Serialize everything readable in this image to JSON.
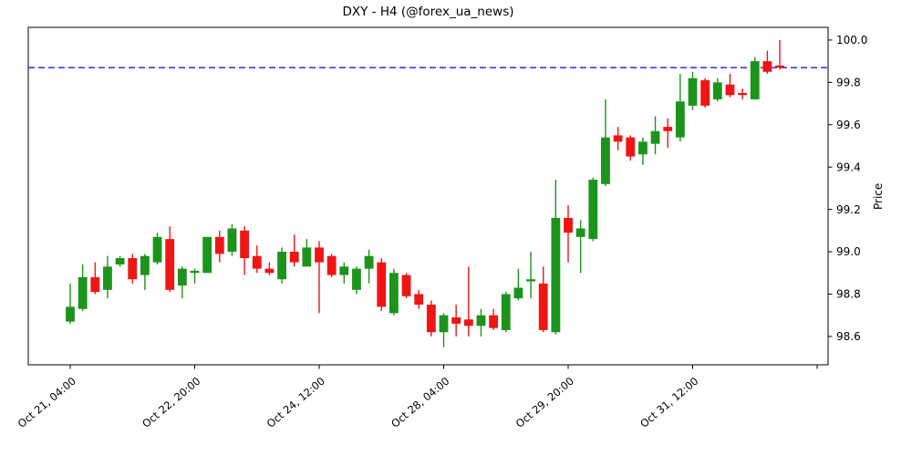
{
  "chart_data": {
    "type": "candlestick",
    "title": "DXY - H4 (@forex_ua_news)",
    "ylabel": "Price",
    "legend": "none",
    "grid": false,
    "ylim": [
      98.466,
      100.06
    ],
    "xlim": [
      -3.37,
      60.88
    ],
    "y_ticks": [
      "98.6",
      "98.8",
      "99.0",
      "99.2",
      "99.4",
      "99.6",
      "99.8",
      "100.0"
    ],
    "x_ticks": [
      {
        "index": 0,
        "label": "Oct 21, 04:00"
      },
      {
        "index": 10,
        "label": "Oct 22, 20:00"
      },
      {
        "index": 20,
        "label": "Oct 24, 12:00"
      },
      {
        "index": 30,
        "label": "Oct 28, 04:00"
      },
      {
        "index": 40,
        "label": "Oct 29, 20:00"
      },
      {
        "index": 50,
        "label": "Oct 31, 12:00"
      },
      {
        "index": 60,
        "label": ""
      }
    ],
    "hline": {
      "value": 99.87,
      "color": "#0000ee",
      "style": "dashed"
    },
    "colors": {
      "up": "#1c941c",
      "down": "#f01515",
      "axis": "#000000",
      "text": "#000000"
    },
    "ohlc": [
      [
        98.67,
        98.85,
        98.66,
        98.74
      ],
      [
        98.73,
        98.94,
        98.72,
        98.88
      ],
      [
        98.88,
        98.95,
        98.8,
        98.81
      ],
      [
        98.82,
        98.98,
        98.78,
        98.93
      ],
      [
        98.94,
        98.98,
        98.93,
        98.97
      ],
      [
        98.97,
        98.99,
        98.85,
        98.87
      ],
      [
        98.89,
        98.99,
        98.82,
        98.98
      ],
      [
        98.95,
        99.09,
        98.94,
        99.07
      ],
      [
        99.06,
        99.12,
        98.81,
        98.82
      ],
      [
        98.84,
        98.93,
        98.78,
        98.92
      ],
      [
        98.9,
        98.92,
        98.85,
        98.91
      ],
      [
        98.9,
        99.07,
        98.9,
        99.07
      ],
      [
        99.07,
        99.1,
        98.95,
        98.99
      ],
      [
        99.0,
        99.13,
        98.98,
        99.11
      ],
      [
        99.1,
        99.12,
        98.89,
        98.97
      ],
      [
        98.98,
        99.03,
        98.9,
        98.92
      ],
      [
        98.92,
        98.95,
        98.89,
        98.9
      ],
      [
        98.87,
        99.02,
        98.85,
        99.0
      ],
      [
        99.0,
        99.08,
        98.93,
        98.95
      ],
      [
        98.93,
        99.06,
        98.93,
        99.02
      ],
      [
        99.02,
        99.05,
        98.71,
        98.95
      ],
      [
        98.98,
        98.99,
        98.88,
        98.89
      ],
      [
        98.89,
        98.95,
        98.85,
        98.93
      ],
      [
        98.82,
        98.93,
        98.8,
        98.92
      ],
      [
        98.92,
        99.01,
        98.85,
        98.98
      ],
      [
        98.95,
        98.97,
        98.72,
        98.74
      ],
      [
        98.71,
        98.92,
        98.7,
        98.9
      ],
      [
        98.89,
        98.9,
        98.78,
        98.79
      ],
      [
        98.8,
        98.82,
        98.73,
        98.75
      ],
      [
        98.75,
        98.77,
        98.6,
        98.62
      ],
      [
        98.62,
        98.71,
        98.55,
        98.7
      ],
      [
        98.69,
        98.75,
        98.6,
        98.66
      ],
      [
        98.68,
        98.93,
        98.6,
        98.65
      ],
      [
        98.65,
        98.73,
        98.6,
        98.7
      ],
      [
        98.7,
        98.73,
        98.63,
        98.64
      ],
      [
        98.63,
        98.81,
        98.62,
        98.8
      ],
      [
        98.78,
        98.92,
        98.77,
        98.83
      ],
      [
        98.86,
        99.0,
        98.78,
        98.87
      ],
      [
        98.85,
        98.93,
        98.62,
        98.63
      ],
      [
        98.62,
        99.34,
        98.61,
        99.16
      ],
      [
        99.16,
        99.22,
        98.95,
        99.09
      ],
      [
        99.07,
        99.15,
        98.9,
        99.11
      ],
      [
        99.06,
        99.35,
        99.05,
        99.34
      ],
      [
        99.32,
        99.72,
        99.31,
        99.54
      ],
      [
        99.55,
        99.59,
        99.48,
        99.52
      ],
      [
        99.54,
        99.55,
        99.43,
        99.45
      ],
      [
        99.46,
        99.54,
        99.41,
        99.52
      ],
      [
        99.51,
        99.64,
        99.46,
        99.57
      ],
      [
        99.59,
        99.63,
        99.49,
        99.57
      ],
      [
        99.54,
        99.84,
        99.52,
        99.71
      ],
      [
        99.69,
        99.85,
        99.67,
        99.82
      ],
      [
        99.81,
        99.82,
        99.68,
        99.69
      ],
      [
        99.72,
        99.82,
        99.71,
        99.8
      ],
      [
        99.79,
        99.84,
        99.73,
        99.74
      ],
      [
        99.75,
        99.77,
        99.72,
        99.74
      ],
      [
        99.72,
        99.92,
        99.72,
        99.9
      ],
      [
        99.9,
        99.95,
        99.84,
        99.85
      ],
      [
        99.88,
        100.0,
        99.86,
        99.87
      ]
    ]
  }
}
